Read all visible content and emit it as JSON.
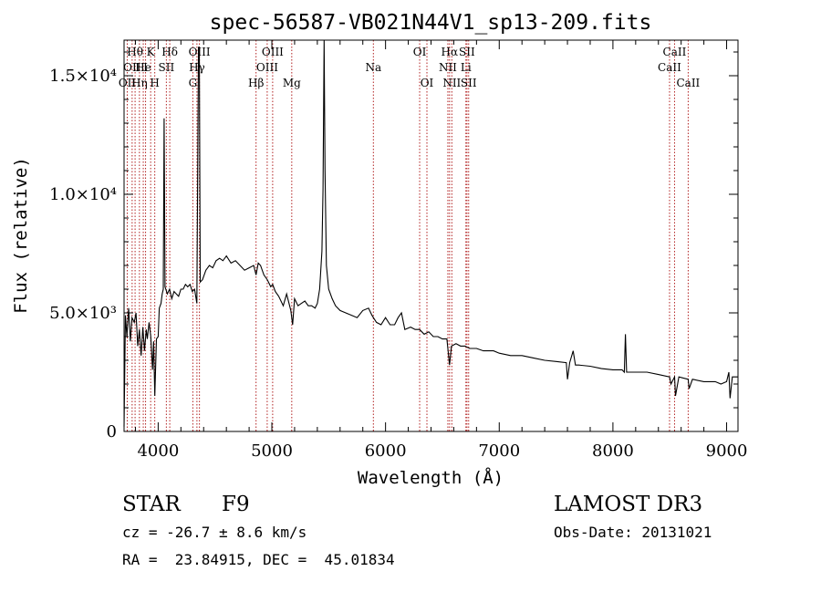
{
  "chart_data": {
    "type": "line",
    "title": "spec-56587-VB021N44V1_sp13-209.fits",
    "xlabel": "Wavelength (Å)",
    "ylabel": "Flux (relative)",
    "xlim": [
      3700,
      9100
    ],
    "ylim": [
      0,
      16500
    ],
    "x_ticks": [
      {
        "value": 4000,
        "label": "4000"
      },
      {
        "value": 5000,
        "label": "5000"
      },
      {
        "value": 6000,
        "label": "6000"
      },
      {
        "value": 7000,
        "label": "7000"
      },
      {
        "value": 8000,
        "label": "8000"
      },
      {
        "value": 9000,
        "label": "9000"
      }
    ],
    "y_ticks": [
      {
        "value": 0,
        "label": "0"
      },
      {
        "value": 5000,
        "label": "5.0×10³"
      },
      {
        "value": 10000,
        "label": "1.0×10⁴"
      },
      {
        "value": 15000,
        "label": "1.5×10⁴"
      }
    ],
    "line_color": "#000000",
    "line_marker_color": "#b22222",
    "spectrum": [
      [
        3700,
        200
      ],
      [
        3712,
        4900
      ],
      [
        3725,
        4000
      ],
      [
        3740,
        5200
      ],
      [
        3755,
        3800
      ],
      [
        3770,
        4800
      ],
      [
        3790,
        4600
      ],
      [
        3805,
        5000
      ],
      [
        3820,
        3600
      ],
      [
        3835,
        4300
      ],
      [
        3850,
        3200
      ],
      [
        3865,
        4400
      ],
      [
        3880,
        3400
      ],
      [
        3895,
        4300
      ],
      [
        3905,
        3900
      ],
      [
        3920,
        4600
      ],
      [
        3935,
        4000
      ],
      [
        3950,
        2600
      ],
      [
        3960,
        3800
      ],
      [
        3970,
        1500
      ],
      [
        3985,
        3900
      ],
      [
        4000,
        4000
      ],
      [
        4010,
        5200
      ],
      [
        4025,
        5400
      ],
      [
        4035,
        5800
      ],
      [
        4045,
        6000
      ],
      [
        4052,
        13200
      ],
      [
        4060,
        6100
      ],
      [
        4080,
        5800
      ],
      [
        4100,
        6000
      ],
      [
        4120,
        5600
      ],
      [
        4140,
        5900
      ],
      [
        4160,
        5800
      ],
      [
        4180,
        5700
      ],
      [
        4200,
        6000
      ],
      [
        4220,
        6000
      ],
      [
        4240,
        6200
      ],
      [
        4260,
        6100
      ],
      [
        4280,
        6200
      ],
      [
        4300,
        5900
      ],
      [
        4320,
        6000
      ],
      [
        4340,
        5400
      ],
      [
        4355,
        16200
      ],
      [
        4362,
        16200
      ],
      [
        4370,
        6300
      ],
      [
        4390,
        6400
      ],
      [
        4420,
        6800
      ],
      [
        4450,
        7000
      ],
      [
        4480,
        6900
      ],
      [
        4510,
        7200
      ],
      [
        4540,
        7300
      ],
      [
        4570,
        7200
      ],
      [
        4600,
        7400
      ],
      [
        4640,
        7100
      ],
      [
        4680,
        7200
      ],
      [
        4720,
        7000
      ],
      [
        4760,
        6800
      ],
      [
        4800,
        6900
      ],
      [
        4840,
        7000
      ],
      [
        4861,
        6600
      ],
      [
        4880,
        7100
      ],
      [
        4900,
        7000
      ],
      [
        4930,
        6600
      ],
      [
        4960,
        6400
      ],
      [
        4990,
        6100
      ],
      [
        5007,
        6200
      ],
      [
        5030,
        5900
      ],
      [
        5060,
        5700
      ],
      [
        5100,
        5300
      ],
      [
        5130,
        5800
      ],
      [
        5167,
        5100
      ],
      [
        5183,
        4500
      ],
      [
        5200,
        5600
      ],
      [
        5230,
        5300
      ],
      [
        5260,
        5400
      ],
      [
        5290,
        5500
      ],
      [
        5320,
        5300
      ],
      [
        5350,
        5300
      ],
      [
        5380,
        5200
      ],
      [
        5400,
        5400
      ],
      [
        5420,
        6000
      ],
      [
        5440,
        7600
      ],
      [
        5450,
        10200
      ],
      [
        5460,
        16500
      ],
      [
        5468,
        11000
      ],
      [
        5480,
        7000
      ],
      [
        5500,
        6000
      ],
      [
        5530,
        5600
      ],
      [
        5560,
        5300
      ],
      [
        5600,
        5100
      ],
      [
        5650,
        5000
      ],
      [
        5700,
        4900
      ],
      [
        5750,
        4800
      ],
      [
        5800,
        5100
      ],
      [
        5850,
        5200
      ],
      [
        5880,
        4900
      ],
      [
        5893,
        4800
      ],
      [
        5920,
        4600
      ],
      [
        5960,
        4500
      ],
      [
        6000,
        4800
      ],
      [
        6040,
        4500
      ],
      [
        6080,
        4500
      ],
      [
        6110,
        4800
      ],
      [
        6140,
        5000
      ],
      [
        6170,
        4300
      ],
      [
        6220,
        4400
      ],
      [
        6260,
        4300
      ],
      [
        6300,
        4300
      ],
      [
        6340,
        4100
      ],
      [
        6380,
        4200
      ],
      [
        6420,
        4000
      ],
      [
        6460,
        4000
      ],
      [
        6500,
        3900
      ],
      [
        6540,
        3900
      ],
      [
        6563,
        2800
      ],
      [
        6580,
        3600
      ],
      [
        6620,
        3700
      ],
      [
        6660,
        3600
      ],
      [
        6700,
        3600
      ],
      [
        6740,
        3500
      ],
      [
        6800,
        3500
      ],
      [
        6860,
        3400
      ],
      [
        6900,
        3400
      ],
      [
        6950,
        3400
      ],
      [
        7000,
        3300
      ],
      [
        7100,
        3200
      ],
      [
        7200,
        3200
      ],
      [
        7300,
        3100
      ],
      [
        7400,
        3000
      ],
      [
        7500,
        2950
      ],
      [
        7590,
        2900
      ],
      [
        7600,
        2200
      ],
      [
        7620,
        2900
      ],
      [
        7650,
        3400
      ],
      [
        7670,
        2800
      ],
      [
        7700,
        2800
      ],
      [
        7800,
        2750
      ],
      [
        7900,
        2650
      ],
      [
        8000,
        2600
      ],
      [
        8080,
        2600
      ],
      [
        8100,
        2500
      ],
      [
        8110,
        4100
      ],
      [
        8120,
        2500
      ],
      [
        8200,
        2500
      ],
      [
        8300,
        2500
      ],
      [
        8400,
        2400
      ],
      [
        8498,
        2300
      ],
      [
        8510,
        2000
      ],
      [
        8542,
        2300
      ],
      [
        8550,
        1500
      ],
      [
        8580,
        2300
      ],
      [
        8662,
        2200
      ],
      [
        8670,
        1800
      ],
      [
        8700,
        2200
      ],
      [
        8800,
        2100
      ],
      [
        8900,
        2100
      ],
      [
        8950,
        2000
      ],
      [
        9000,
        2100
      ],
      [
        9020,
        2500
      ],
      [
        9030,
        1400
      ],
      [
        9050,
        2300
      ],
      [
        9100,
        2300
      ]
    ],
    "lines": [
      {
        "wavelength": 3728,
        "label": "OII",
        "row": 2
      },
      {
        "wavelength": 3771,
        "label": "OII",
        "row": 1
      },
      {
        "wavelength": 3797,
        "label": "Hθ",
        "row": 0
      },
      {
        "wavelength": 3835,
        "label": "Hη",
        "row": 2
      },
      {
        "wavelength": 3869,
        "label": "He",
        "row": 1
      },
      {
        "wavelength": 3889,
        "label": "I",
        "row": 1
      },
      {
        "wavelength": 3934,
        "label": "K",
        "row": 0
      },
      {
        "wavelength": 3970,
        "label": "H",
        "row": 2
      },
      {
        "wavelength": 4072,
        "label": "SII",
        "row": 1
      },
      {
        "wavelength": 4102,
        "label": "Hδ",
        "row": 0
      },
      {
        "wavelength": 4305,
        "label": "G",
        "row": 2
      },
      {
        "wavelength": 4341,
        "label": "Hγ",
        "row": 1
      },
      {
        "wavelength": 4363,
        "label": "OIII",
        "row": 0
      },
      {
        "wavelength": 4861,
        "label": "Hβ",
        "row": 2
      },
      {
        "wavelength": 4959,
        "label": "OIII",
        "row": 1
      },
      {
        "wavelength": 5007,
        "label": "OIII",
        "row": 0
      },
      {
        "wavelength": 5175,
        "label": "Mg",
        "row": 2
      },
      {
        "wavelength": 5893,
        "label": "Na",
        "row": 1
      },
      {
        "wavelength": 6300,
        "label": "OI",
        "row": 0
      },
      {
        "wavelength": 6364,
        "label": "OI",
        "row": 2
      },
      {
        "wavelength": 6548,
        "label": "NII",
        "row": 1
      },
      {
        "wavelength": 6563,
        "label": "Hα",
        "row": 0
      },
      {
        "wavelength": 6583,
        "label": "NII",
        "row": 2
      },
      {
        "wavelength": 6707,
        "label": "Li",
        "row": 1
      },
      {
        "wavelength": 6716,
        "label": "SII",
        "row": 0
      },
      {
        "wavelength": 6731,
        "label": "SII",
        "row": 2
      },
      {
        "wavelength": 8498,
        "label": "CaII",
        "row": 1
      },
      {
        "wavelength": 8542,
        "label": "CaII",
        "row": 0
      },
      {
        "wavelength": 8662,
        "label": "CaII",
        "row": 2
      }
    ]
  },
  "info": {
    "class": "STAR",
    "subclass": "F9",
    "survey": "LAMOST DR3",
    "cz": "cz = -26.7 ± 8.6 km/s",
    "obs_date": "Obs-Date: 20131021",
    "coords": "RA =  23.84915, DEC =  45.01834"
  }
}
